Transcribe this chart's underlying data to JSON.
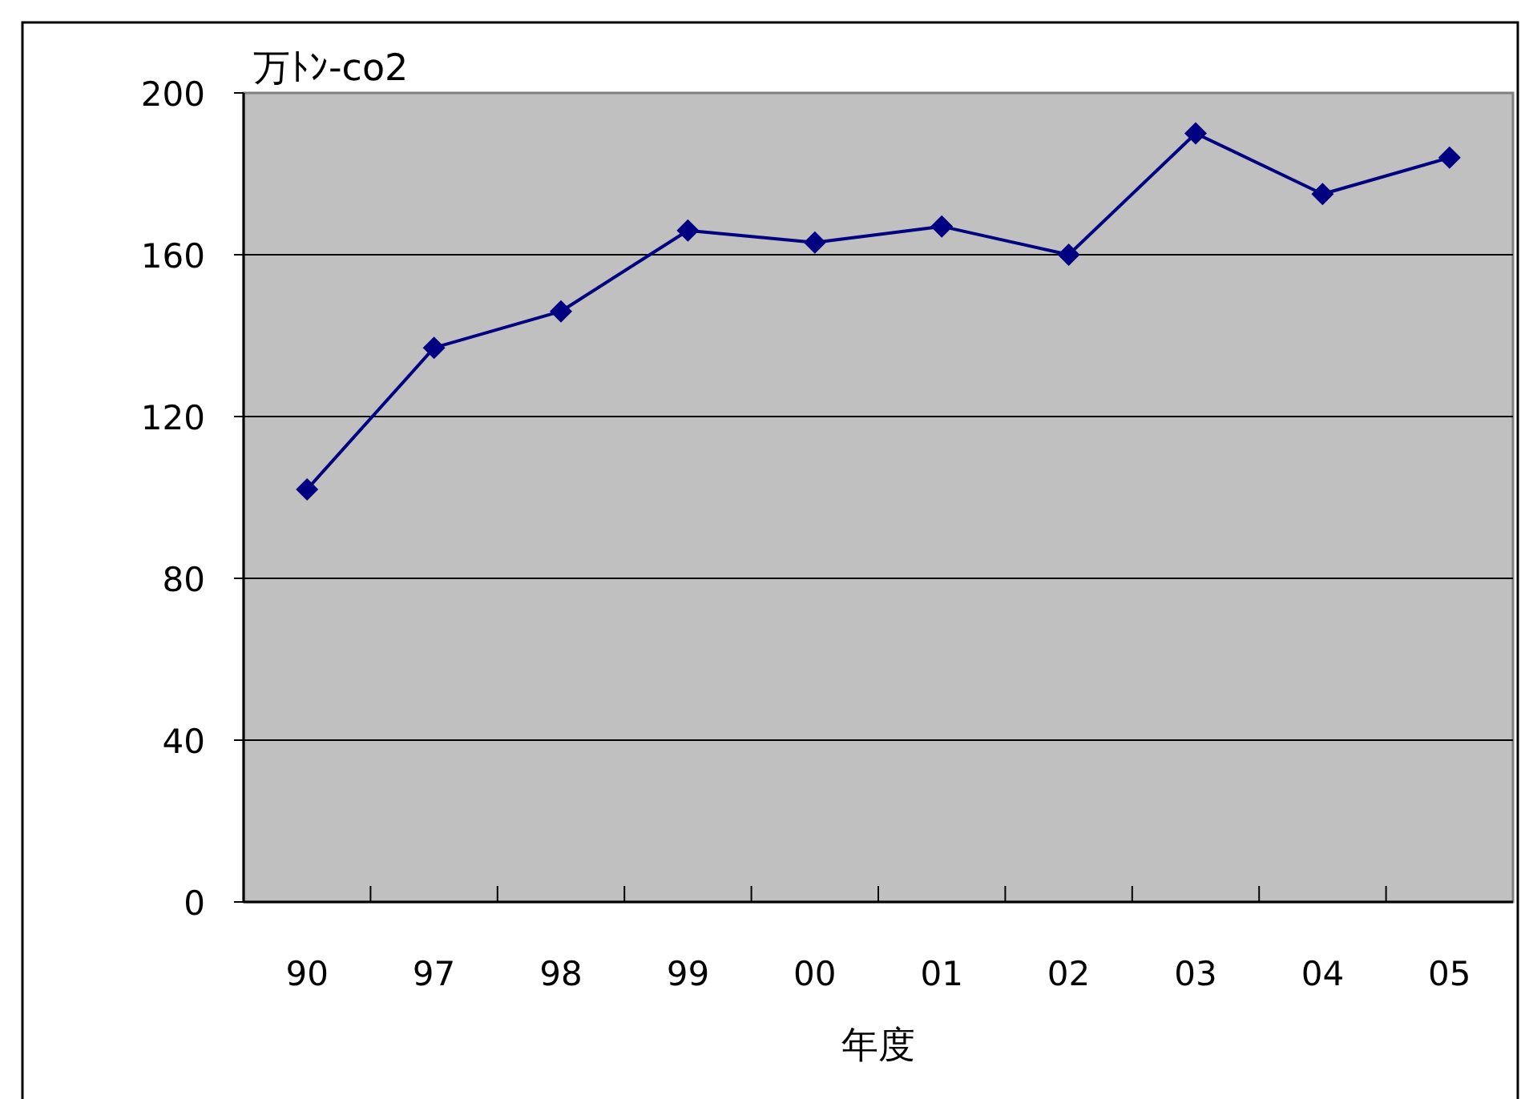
{
  "chart_data": {
    "type": "line",
    "ylabel": "万ﾄﾝ-co2",
    "xlabel": "年度",
    "categories": [
      "90",
      "97",
      "98",
      "99",
      "00",
      "01",
      "02",
      "03",
      "04",
      "05"
    ],
    "values": [
      102,
      137,
      146,
      166,
      163,
      167,
      160,
      190,
      175,
      184
    ],
    "color": "#000080",
    "ylim": [
      0,
      200
    ],
    "yticks": [
      0,
      40,
      80,
      120,
      160,
      200
    ],
    "grid": "y",
    "marker": "diamond",
    "line_style": "solid"
  }
}
